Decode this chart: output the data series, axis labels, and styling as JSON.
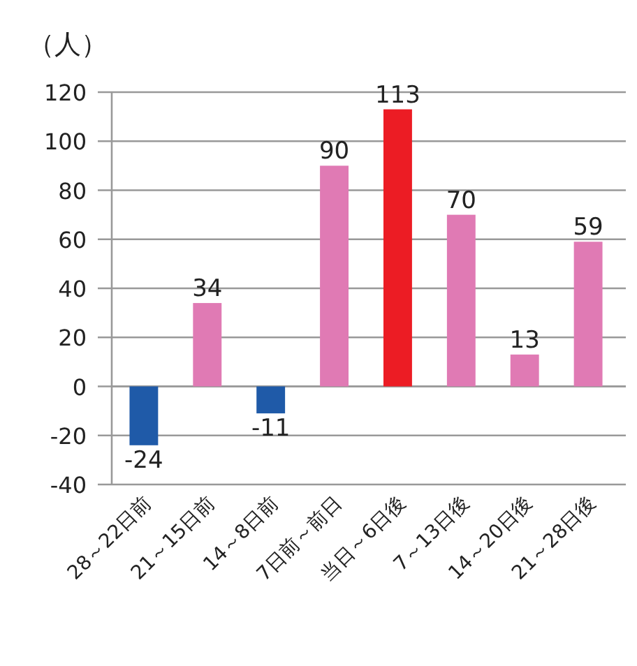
{
  "chart_data": {
    "type": "bar",
    "ylabel": "（人）",
    "categories": [
      "28～22日前",
      "21～15日前",
      "14～8日前",
      "7日前～前日",
      "当日～6日後",
      "7～13日後",
      "14～20日後",
      "21～28日後"
    ],
    "values": [
      -24,
      34,
      -11,
      90,
      113,
      70,
      13,
      59
    ],
    "colors": [
      "#1f5aa8",
      "#e07ab4",
      "#1f5aa8",
      "#e07ab4",
      "#ec1c24",
      "#e07ab4",
      "#e07ab4",
      "#e07ab4"
    ],
    "ylim": [
      -40,
      120
    ],
    "yticks": [
      -40,
      -20,
      0,
      20,
      40,
      60,
      80,
      100,
      120
    ],
    "grid": "y",
    "data_labels": true
  }
}
